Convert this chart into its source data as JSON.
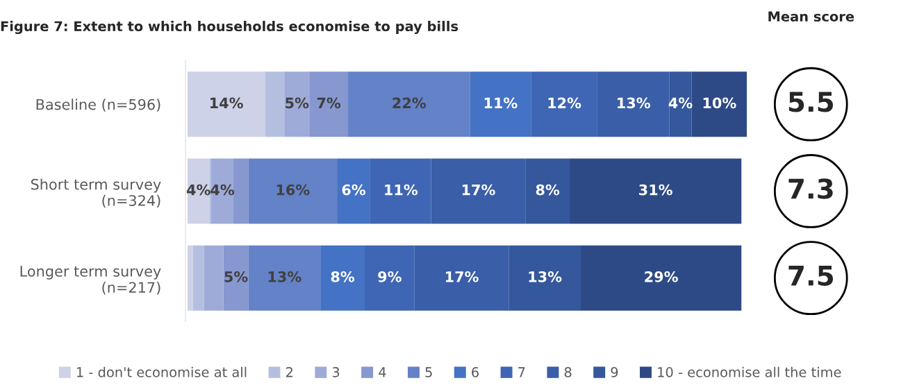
{
  "chart_data": {
    "type": "bar",
    "orientation": "horizontal",
    "stacked": true,
    "title": "Figure 7: Extent to which households economise to pay bills",
    "categories": [
      "Baseline (n=596)",
      "Short term survey\n(n=324)",
      "Longer term survey\n(n=217)"
    ],
    "series": [
      {
        "name": "1 - don't economise at all",
        "color": "#cdd2e8",
        "values": [
          14,
          4,
          1
        ],
        "value_labels": [
          "14%",
          "4%",
          null
        ]
      },
      {
        "name": "2",
        "color": "#b4bfe0",
        "values": [
          3.5,
          0.3,
          2
        ],
        "value_labels": [
          null,
          null,
          null
        ]
      },
      {
        "name": "3",
        "color": "#9eabd9",
        "values": [
          4.5,
          4,
          3.5
        ],
        "value_labels": [
          "5%",
          "4%",
          null
        ]
      },
      {
        "name": "4",
        "color": "#8797cf",
        "values": [
          7,
          2.7,
          4.5
        ],
        "value_labels": [
          "7%",
          null,
          "5%"
        ]
      },
      {
        "name": "5",
        "color": "#6482c8",
        "values": [
          22,
          16,
          13
        ],
        "value_labels": [
          "22%",
          "16%",
          "13%"
        ]
      },
      {
        "name": "6",
        "color": "#4472c4",
        "values": [
          11,
          6,
          8
        ],
        "value_labels": [
          "11%",
          "6%",
          "8%"
        ]
      },
      {
        "name": "7",
        "color": "#3e66b4",
        "values": [
          12,
          11,
          9
        ],
        "value_labels": [
          "12%",
          "11%",
          "9%"
        ]
      },
      {
        "name": "8",
        "color": "#3a5ea8",
        "values": [
          13,
          17,
          17
        ],
        "value_labels": [
          "13%",
          "17%",
          "17%"
        ]
      },
      {
        "name": "9",
        "color": "#35579c",
        "values": [
          4,
          8,
          13
        ],
        "value_labels": [
          "4%",
          "8%",
          "13%"
        ]
      },
      {
        "name": "10 - economise all the time",
        "color": "#2e4a86",
        "values": [
          10,
          31,
          29
        ],
        "value_labels": [
          "10%",
          "31%",
          "29%"
        ]
      }
    ],
    "annotations": [
      "Mean score",
      "5.5",
      "7.3",
      "7.5"
    ],
    "legend": "bottom",
    "grid": false,
    "tick_labels": "y"
  }
}
